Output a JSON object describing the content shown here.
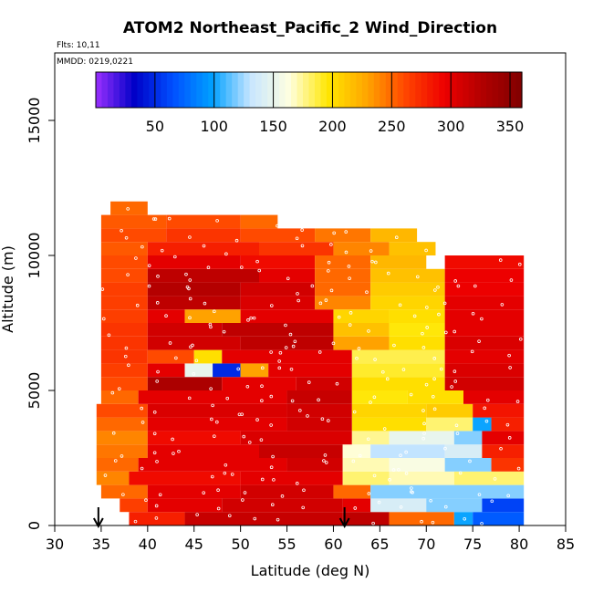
{
  "chart_data": {
    "type": "heatmap",
    "title": "ATOM2 Northeast_Pacific_2 Wind_Direction",
    "flights_label": "Flts: 10,11",
    "dates_label": "MMDD: 0219,0221",
    "xlabel": "Latitude (deg N)",
    "ylabel": "Altitude (m)",
    "xlim": [
      30,
      85
    ],
    "ylim": [
      0,
      17500
    ],
    "xticks": [
      30,
      35,
      40,
      45,
      50,
      55,
      60,
      65,
      70,
      75,
      80,
      85
    ],
    "yticks": [
      0,
      5000,
      10000,
      15000
    ],
    "colorbar": {
      "range": [
        0,
        360
      ],
      "ticks": [
        50,
        100,
        150,
        200,
        250,
        300,
        350
      ],
      "colors": [
        "#9b30ff",
        "#0000c8",
        "#0050ff",
        "#00a0ff",
        "#c8e6ff",
        "#ffffe0",
        "#ffe600",
        "#ffa500",
        "#ff4500",
        "#ee0000",
        "#b00000",
        "#800000"
      ]
    },
    "arrows_latitude": [
      34.7,
      61.2
    ],
    "bands": [
      {
        "alt": 250,
        "segs": [
          [
            38,
            44,
            280
          ],
          [
            44,
            61,
            315
          ],
          [
            61,
            66,
            320
          ],
          [
            66,
            73,
            250
          ],
          [
            73,
            75,
            100
          ],
          [
            75,
            80.5,
            70
          ]
        ]
      },
      {
        "alt": 750,
        "segs": [
          [
            37,
            40,
            265
          ],
          [
            40,
            48,
            300
          ],
          [
            48,
            61,
            310
          ],
          [
            61,
            64,
            300
          ],
          [
            64,
            70,
            140
          ],
          [
            70,
            76,
            120
          ],
          [
            76,
            80.5,
            60
          ]
        ]
      },
      {
        "alt": 1250,
        "segs": [
          [
            35,
            40,
            250
          ],
          [
            40,
            50,
            300
          ],
          [
            50,
            60,
            310
          ],
          [
            60,
            64,
            250
          ],
          [
            64,
            74,
            120
          ],
          [
            74,
            80.5,
            120
          ]
        ]
      },
      {
        "alt": 1750,
        "segs": [
          [
            34.5,
            38,
            240
          ],
          [
            38,
            50,
            290
          ],
          [
            50,
            61,
            300
          ],
          [
            61,
            66,
            180
          ],
          [
            66,
            73,
            170
          ],
          [
            73,
            80.5,
            180
          ]
        ]
      },
      {
        "alt": 2250,
        "segs": [
          [
            34.5,
            39,
            250
          ],
          [
            39,
            55,
            300
          ],
          [
            55,
            61,
            310
          ],
          [
            61,
            66,
            170
          ],
          [
            66,
            72,
            160
          ],
          [
            72,
            77,
            120
          ],
          [
            77,
            80.5,
            270
          ]
        ]
      },
      {
        "alt": 2750,
        "segs": [
          [
            34.5,
            40,
            245
          ],
          [
            40,
            52,
            300
          ],
          [
            52,
            61,
            315
          ],
          [
            61,
            64,
            165
          ],
          [
            64,
            72,
            130
          ],
          [
            72,
            76,
            140
          ],
          [
            76,
            80.5,
            280
          ]
        ]
      },
      {
        "alt": 3250,
        "segs": [
          [
            34.5,
            40,
            240
          ],
          [
            40,
            50,
            290
          ],
          [
            50,
            62,
            305
          ],
          [
            62,
            66,
            175
          ],
          [
            66,
            73,
            150
          ],
          [
            73,
            76,
            120
          ],
          [
            76,
            80.5,
            300
          ]
        ]
      },
      {
        "alt": 3750,
        "segs": [
          [
            34.5,
            40,
            250
          ],
          [
            40,
            55,
            300
          ],
          [
            55,
            62,
            310
          ],
          [
            62,
            70,
            200
          ],
          [
            70,
            75,
            180
          ],
          [
            75,
            77,
            100
          ],
          [
            77,
            80.5,
            280
          ]
        ]
      },
      {
        "alt": 4250,
        "segs": [
          [
            34.5,
            40,
            260
          ],
          [
            40,
            55,
            305
          ],
          [
            55,
            62,
            310
          ],
          [
            62,
            70,
            205
          ],
          [
            70,
            75,
            210
          ],
          [
            75,
            80.5,
            285
          ]
        ]
      },
      {
        "alt": 4750,
        "segs": [
          [
            35,
            39,
            250
          ],
          [
            39,
            55,
            300
          ],
          [
            55,
            62,
            315
          ],
          [
            62,
            68,
            195
          ],
          [
            68,
            74,
            200
          ],
          [
            74,
            80.5,
            300
          ]
        ]
      },
      {
        "alt": 5250,
        "segs": [
          [
            35,
            40,
            260
          ],
          [
            40,
            48,
            330
          ],
          [
            48,
            56,
            300
          ],
          [
            56,
            62,
            310
          ],
          [
            62,
            72,
            200
          ],
          [
            72,
            80.5,
            310
          ]
        ]
      },
      {
        "alt": 5750,
        "segs": [
          [
            35,
            40,
            265
          ],
          [
            40,
            44,
            300
          ],
          [
            44,
            47,
            150
          ],
          [
            47,
            50,
            50
          ],
          [
            50,
            53,
            230
          ],
          [
            53,
            62,
            300
          ],
          [
            62,
            72,
            190
          ],
          [
            72,
            80.5,
            305
          ]
        ]
      },
      {
        "alt": 6250,
        "segs": [
          [
            35,
            40,
            270
          ],
          [
            40,
            45,
            260
          ],
          [
            45,
            48,
            200
          ],
          [
            48,
            62,
            300
          ],
          [
            62,
            72,
            185
          ],
          [
            72,
            80.5,
            300
          ]
        ]
      },
      {
        "alt": 6750,
        "segs": [
          [
            35,
            40,
            270
          ],
          [
            40,
            50,
            310
          ],
          [
            50,
            60,
            320
          ],
          [
            60,
            66,
            230
          ],
          [
            66,
            72,
            200
          ],
          [
            72,
            80.5,
            305
          ]
        ]
      },
      {
        "alt": 7250,
        "segs": [
          [
            35,
            40,
            270
          ],
          [
            40,
            48,
            310
          ],
          [
            48,
            60,
            320
          ],
          [
            60,
            66,
            215
          ],
          [
            66,
            72,
            195
          ],
          [
            72,
            80.5,
            300
          ]
        ]
      },
      {
        "alt": 7750,
        "segs": [
          [
            35,
            40,
            265
          ],
          [
            40,
            44,
            300
          ],
          [
            44,
            50,
            230
          ],
          [
            50,
            60,
            300
          ],
          [
            60,
            66,
            205
          ],
          [
            66,
            72,
            200
          ],
          [
            72,
            80.5,
            300
          ]
        ]
      },
      {
        "alt": 8250,
        "segs": [
          [
            35,
            40,
            265
          ],
          [
            40,
            50,
            320
          ],
          [
            50,
            58,
            305
          ],
          [
            58,
            64,
            240
          ],
          [
            64,
            72,
            205
          ],
          [
            72,
            80.5,
            300
          ]
        ]
      },
      {
        "alt": 8750,
        "segs": [
          [
            35,
            40,
            265
          ],
          [
            40,
            50,
            325
          ],
          [
            50,
            58,
            310
          ],
          [
            58,
            64,
            250
          ],
          [
            64,
            72,
            210
          ],
          [
            72,
            80.5,
            295
          ]
        ]
      },
      {
        "alt": 9250,
        "segs": [
          [
            35,
            40,
            260
          ],
          [
            40,
            52,
            320
          ],
          [
            52,
            58,
            300
          ],
          [
            58,
            64,
            250
          ],
          [
            64,
            72,
            215
          ],
          [
            72,
            80.5,
            295
          ]
        ]
      },
      {
        "alt": 9750,
        "segs": [
          [
            35,
            40,
            260
          ],
          [
            40,
            50,
            300
          ],
          [
            50,
            58,
            290
          ],
          [
            58,
            64,
            250
          ],
          [
            64,
            70,
            220
          ],
          [
            72,
            80.5,
            290
          ]
        ]
      },
      {
        "alt": 10250,
        "segs": [
          [
            35,
            40,
            255
          ],
          [
            40,
            52,
            280
          ],
          [
            52,
            60,
            270
          ],
          [
            60,
            66,
            240
          ],
          [
            66,
            71,
            215
          ]
        ]
      },
      {
        "alt": 10750,
        "segs": [
          [
            35,
            42,
            260
          ],
          [
            42,
            50,
            270
          ],
          [
            50,
            58,
            260
          ],
          [
            58,
            64,
            245
          ],
          [
            64,
            69,
            220
          ]
        ]
      },
      {
        "alt": 11250,
        "segs": [
          [
            35,
            42,
            255
          ],
          [
            42,
            50,
            260
          ],
          [
            50,
            54,
            250
          ]
        ]
      },
      {
        "alt": 11750,
        "segs": [
          [
            36,
            40,
            250
          ]
        ]
      }
    ]
  }
}
